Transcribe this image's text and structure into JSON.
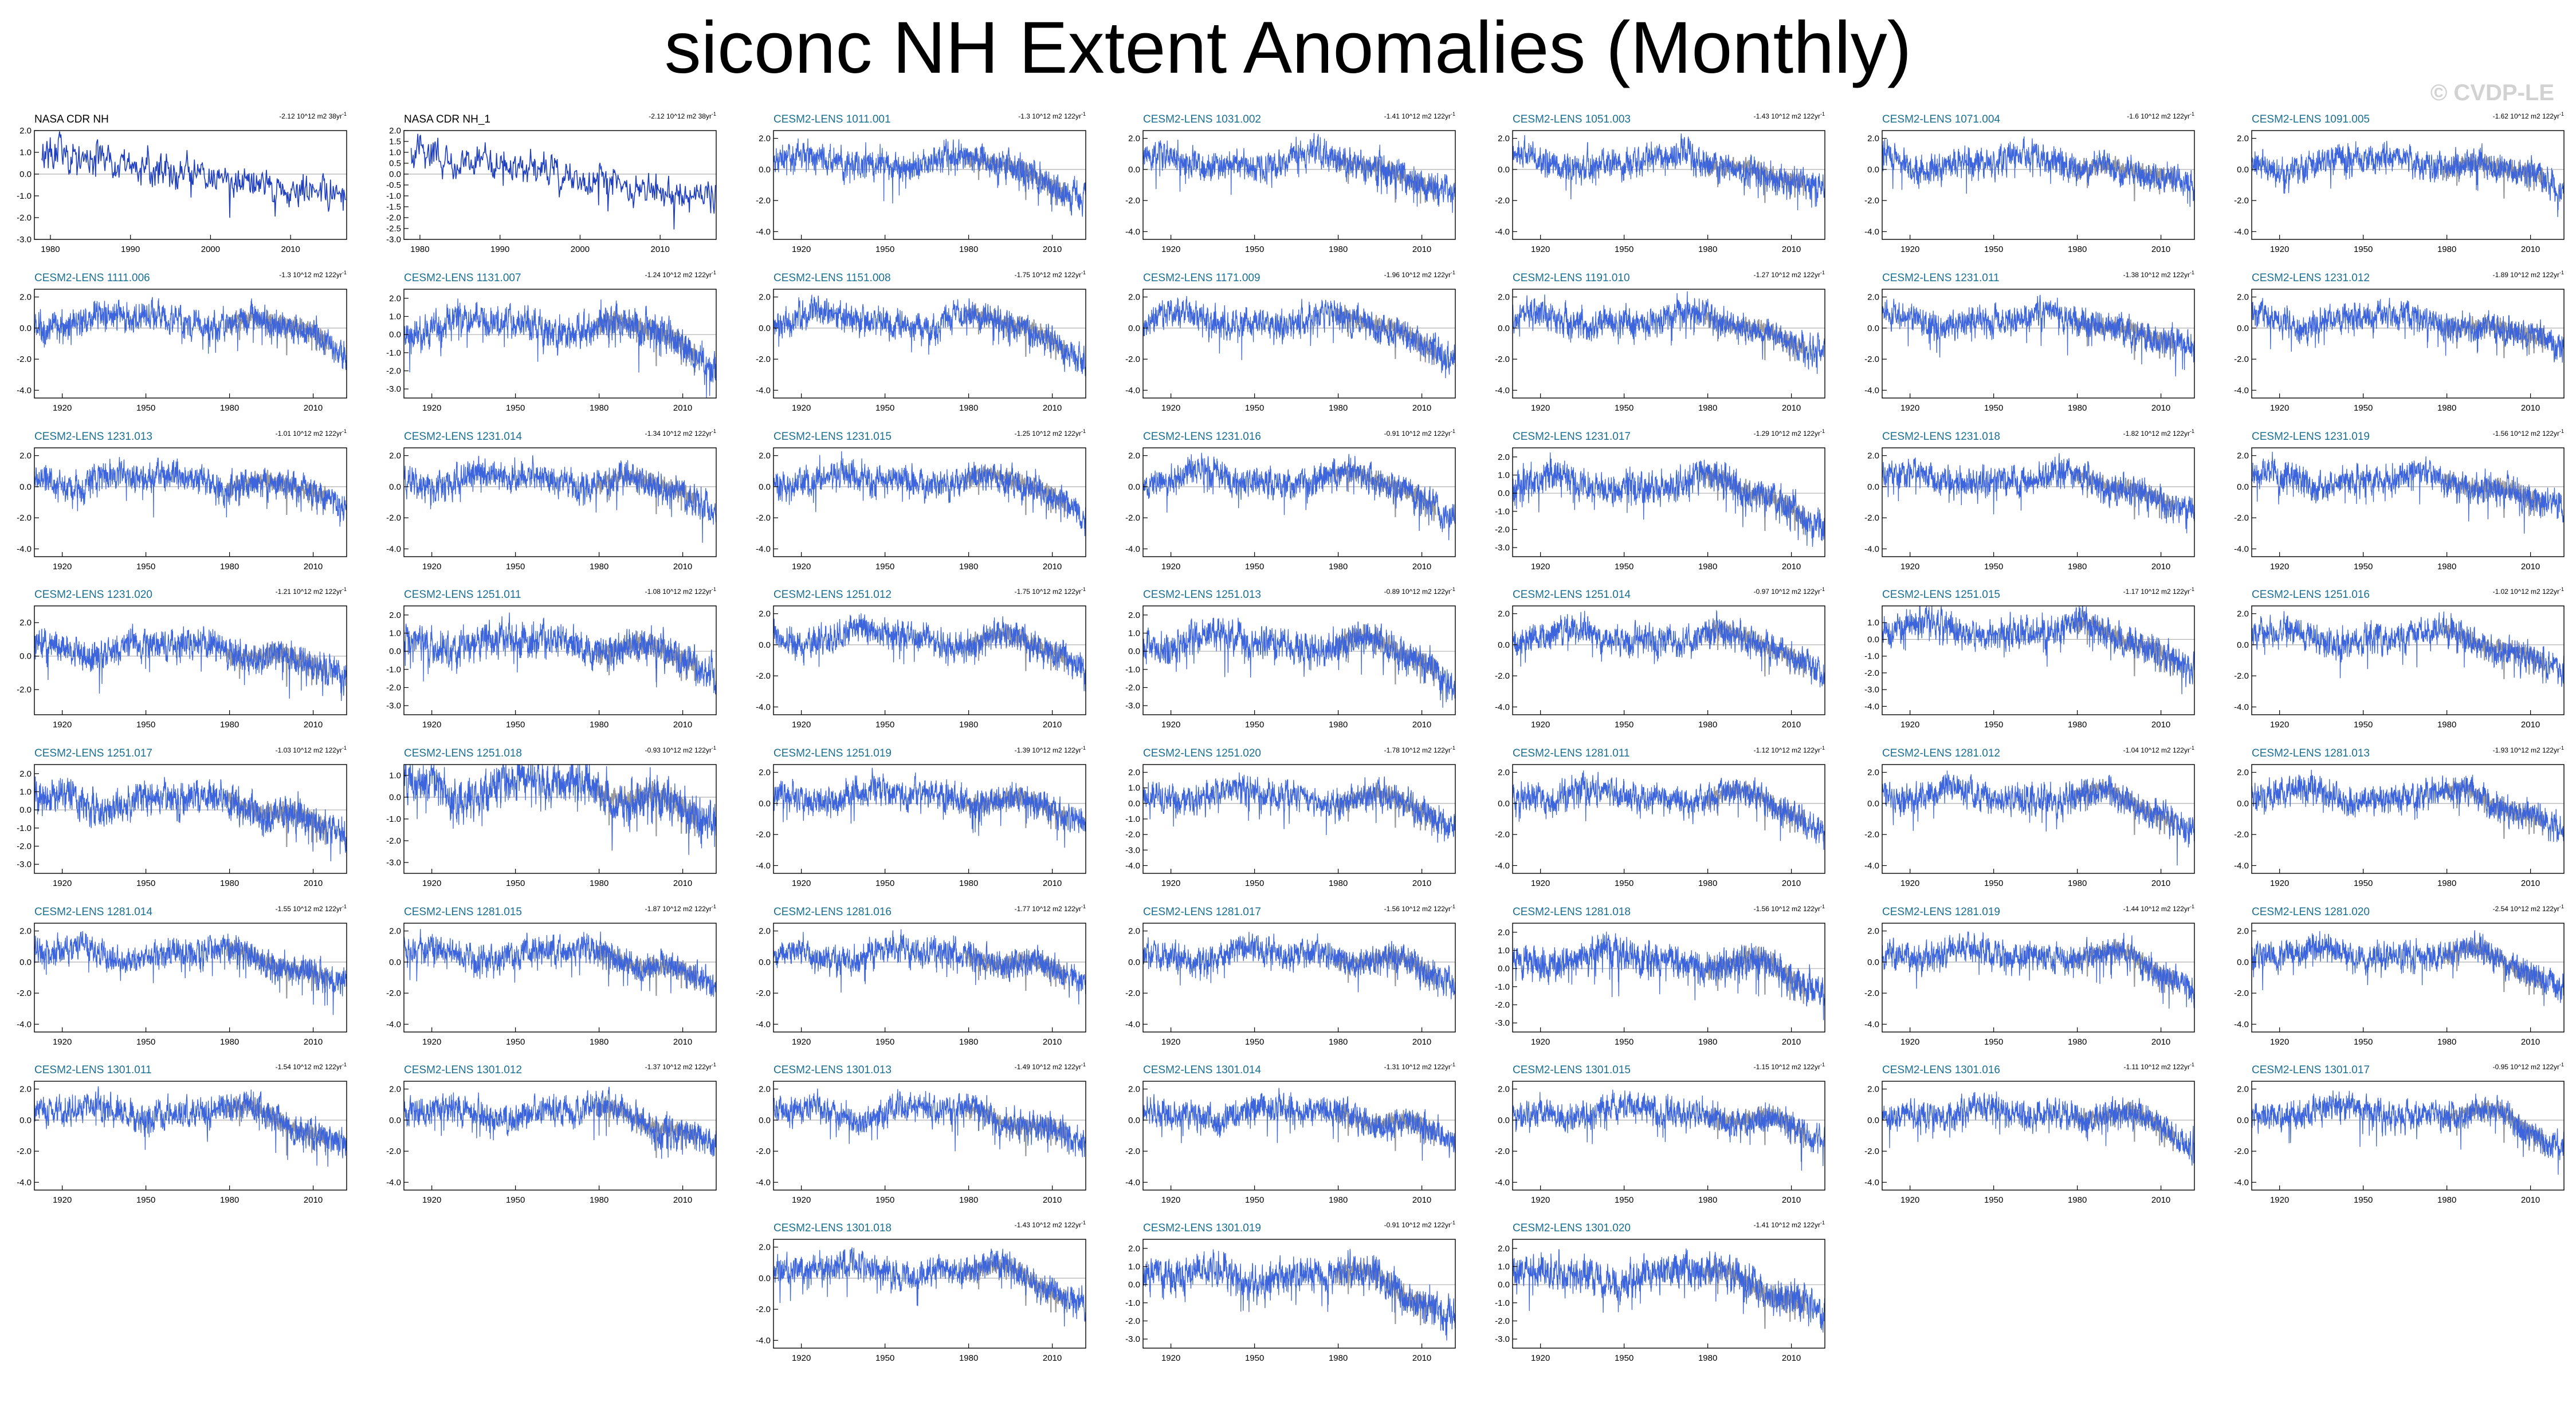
{
  "title": "siconc NH Extent Anomalies (Monthly)",
  "watermark": "© CVDP-LE",
  "colors": {
    "obs": "#1f3fbf",
    "model": "#3c64dc",
    "obs_overlay": "#9a9a9a",
    "zero_line": "#b0b0b0",
    "obs_title": "#000000",
    "model_title": "#1b6f93"
  },
  "chart_data": {
    "type": "line",
    "xlabel": "",
    "ylabel": "",
    "obs_xticks": [
      1980,
      1990,
      2000,
      2010
    ],
    "model_xticks": [
      1920,
      1950,
      1980,
      2010
    ],
    "panels": [
      {
        "title": "NASA CDR NH",
        "trend": "-2.12 10^12 m2 38yr",
        "kind": "obs",
        "yticks": [
          "2.0",
          "1.0",
          "0.0",
          "-1.0",
          "-2.0",
          "-3.0"
        ],
        "xlim": [
          1978,
          2017
        ],
        "ylim": [
          -3.0,
          2.0
        ]
      },
      {
        "title": "NASA CDR NH_1",
        "trend": "-2.12 10^12 m2 38yr",
        "kind": "obs",
        "yticks": [
          "2.0",
          "1.5",
          "1.0",
          "0.5",
          "0.0",
          "-0.5",
          "-1.0",
          "-1.5",
          "-2.0",
          "-2.5",
          "-3.0"
        ],
        "xlim": [
          1978,
          2017
        ],
        "ylim": [
          -3.0,
          2.0
        ]
      },
      {
        "title": "CESM2-LENS 1011.001",
        "trend": "-1.3 10^12 m2 122yr",
        "kind": "model",
        "yticks": [
          "2.0",
          "0.0",
          "-2.0",
          "-4.0"
        ],
        "ylim": [
          -4.5,
          2.5
        ]
      },
      {
        "title": "CESM2-LENS 1031.002",
        "trend": "-1.41 10^12 m2 122yr",
        "kind": "model",
        "yticks": [
          "2.0",
          "0.0",
          "-2.0",
          "-4.0"
        ],
        "ylim": [
          -4.5,
          2.5
        ]
      },
      {
        "title": "CESM2-LENS 1051.003",
        "trend": "-1.43 10^12 m2 122yr",
        "kind": "model",
        "yticks": [
          "2.0",
          "0.0",
          "-2.0",
          "-4.0"
        ],
        "ylim": [
          -4.5,
          2.5
        ]
      },
      {
        "title": "CESM2-LENS 1071.004",
        "trend": "-1.6 10^12 m2 122yr",
        "kind": "model",
        "yticks": [
          "2.0",
          "0.0",
          "-2.0",
          "-4.0"
        ],
        "ylim": [
          -4.5,
          2.5
        ]
      },
      {
        "title": "CESM2-LENS 1091.005",
        "trend": "-1.62 10^12 m2 122yr",
        "kind": "model",
        "yticks": [
          "2.0",
          "0.0",
          "-2.0",
          "-4.0"
        ],
        "ylim": [
          -4.5,
          2.5
        ]
      },
      {
        "title": "CESM2-LENS 1111.006",
        "trend": "-1.3 10^12 m2 122yr",
        "kind": "model",
        "yticks": [
          "2.0",
          "0.0",
          "-2.0",
          "-4.0"
        ],
        "ylim": [
          -4.5,
          2.5
        ]
      },
      {
        "title": "CESM2-LENS 1131.007",
        "trend": "-1.24 10^12 m2 122yr",
        "kind": "model",
        "yticks": [
          "2.0",
          "1.0",
          "0.0",
          "-1.0",
          "-2.0",
          "-3.0"
        ],
        "ylim": [
          -3.5,
          2.5
        ]
      },
      {
        "title": "CESM2-LENS 1151.008",
        "trend": "-1.75 10^12 m2 122yr",
        "kind": "model",
        "yticks": [
          "2.0",
          "0.0",
          "-2.0",
          "-4.0"
        ],
        "ylim": [
          -4.5,
          2.5
        ]
      },
      {
        "title": "CESM2-LENS 1171.009",
        "trend": "-1.96 10^12 m2 122yr",
        "kind": "model",
        "yticks": [
          "2.0",
          "0.0",
          "-2.0",
          "-4.0"
        ],
        "ylim": [
          -4.5,
          2.5
        ]
      },
      {
        "title": "CESM2-LENS 1191.010",
        "trend": "-1.27 10^12 m2 122yr",
        "kind": "model",
        "yticks": [
          "2.0",
          "0.0",
          "-2.0",
          "-4.0"
        ],
        "ylim": [
          -4.5,
          2.5
        ]
      },
      {
        "title": "CESM2-LENS 1231.011",
        "trend": "-1.38 10^12 m2 122yr",
        "kind": "model",
        "yticks": [
          "2.0",
          "0.0",
          "-2.0",
          "-4.0"
        ],
        "ylim": [
          -4.5,
          2.5
        ]
      },
      {
        "title": "CESM2-LENS 1231.012",
        "trend": "-1.89 10^12 m2 122yr",
        "kind": "model",
        "yticks": [
          "2.0",
          "0.0",
          "-2.0",
          "-4.0"
        ],
        "ylim": [
          -4.5,
          2.5
        ]
      },
      {
        "title": "CESM2-LENS 1231.013",
        "trend": "-1.01 10^12 m2 122yr",
        "kind": "model",
        "yticks": [
          "2.0",
          "0.0",
          "-2.0",
          "-4.0"
        ],
        "ylim": [
          -4.5,
          2.5
        ]
      },
      {
        "title": "CESM2-LENS 1231.014",
        "trend": "-1.34 10^12 m2 122yr",
        "kind": "model",
        "yticks": [
          "2.0",
          "0.0",
          "-2.0",
          "-4.0"
        ],
        "ylim": [
          -4.5,
          2.5
        ]
      },
      {
        "title": "CESM2-LENS 1231.015",
        "trend": "-1.25 10^12 m2 122yr",
        "kind": "model",
        "yticks": [
          "2.0",
          "0.0",
          "-2.0",
          "-4.0"
        ],
        "ylim": [
          -4.5,
          2.5
        ]
      },
      {
        "title": "CESM2-LENS 1231.016",
        "trend": "-0.91 10^12 m2 122yr",
        "kind": "model",
        "yticks": [
          "2.0",
          "0.0",
          "-2.0",
          "-4.0"
        ],
        "ylim": [
          -4.5,
          2.5
        ]
      },
      {
        "title": "CESM2-LENS 1231.017",
        "trend": "-1.29 10^12 m2 122yr",
        "kind": "model",
        "yticks": [
          "2.0",
          "1.0",
          "0.0",
          "-1.0",
          "-2.0",
          "-3.0"
        ],
        "ylim": [
          -3.5,
          2.5
        ]
      },
      {
        "title": "CESM2-LENS 1231.018",
        "trend": "-1.82 10^12 m2 122yr",
        "kind": "model",
        "yticks": [
          "2.0",
          "0.0",
          "-2.0",
          "-4.0"
        ],
        "ylim": [
          -4.5,
          2.5
        ]
      },
      {
        "title": "CESM2-LENS 1231.019",
        "trend": "-1.56 10^12 m2 122yr",
        "kind": "model",
        "yticks": [
          "2.0",
          "0.0",
          "-2.0",
          "-4.0"
        ],
        "ylim": [
          -4.5,
          2.5
        ]
      },
      {
        "title": "CESM2-LENS 1231.020",
        "trend": "-1.21 10^12 m2 122yr",
        "kind": "model",
        "yticks": [
          "2.0",
          "0.0",
          "-2.0"
        ],
        "ylim": [
          -3.5,
          3.0
        ]
      },
      {
        "title": "CESM2-LENS 1251.011",
        "trend": "-1.08 10^12 m2 122yr",
        "kind": "model",
        "yticks": [
          "2.0",
          "1.0",
          "0.0",
          "-1.0",
          "-2.0",
          "-3.0"
        ],
        "ylim": [
          -3.5,
          2.5
        ]
      },
      {
        "title": "CESM2-LENS 1251.012",
        "trend": "-1.75 10^12 m2 122yr",
        "kind": "model",
        "yticks": [
          "2.0",
          "0.0",
          "-2.0",
          "-4.0"
        ],
        "ylim": [
          -4.5,
          2.5
        ]
      },
      {
        "title": "CESM2-LENS 1251.013",
        "trend": "-0.89 10^12 m2 122yr",
        "kind": "model",
        "yticks": [
          "2.0",
          "1.0",
          "0.0",
          "-1.0",
          "-2.0",
          "-3.0"
        ],
        "ylim": [
          -3.5,
          2.5
        ]
      },
      {
        "title": "CESM2-LENS 1251.014",
        "trend": "-0.97 10^12 m2 122yr",
        "kind": "model",
        "yticks": [
          "2.0",
          "0.0",
          "-2.0",
          "-4.0"
        ],
        "ylim": [
          -4.5,
          2.5
        ]
      },
      {
        "title": "CESM2-LENS 1251.015",
        "trend": "-1.17 10^12 m2 122yr",
        "kind": "model",
        "yticks": [
          "1.0",
          "0.0",
          "-1.0",
          "-2.0",
          "-3.0",
          "-4.0"
        ],
        "ylim": [
          -4.5,
          2.0
        ]
      },
      {
        "title": "CESM2-LENS 1251.016",
        "trend": "-1.02 10^12 m2 122yr",
        "kind": "model",
        "yticks": [
          "2.0",
          "0.0",
          "-2.0",
          "-4.0"
        ],
        "ylim": [
          -4.5,
          2.5
        ]
      },
      {
        "title": "CESM2-LENS 1251.017",
        "trend": "-1.03 10^12 m2 122yr",
        "kind": "model",
        "yticks": [
          "2.0",
          "1.0",
          "0.0",
          "-1.0",
          "-2.0",
          "-3.0"
        ],
        "ylim": [
          -3.5,
          2.5
        ]
      },
      {
        "title": "CESM2-LENS 1251.018",
        "trend": "-0.93 10^12 m2 122yr",
        "kind": "model",
        "yticks": [
          "1.0",
          "0.0",
          "-1.0",
          "-2.0",
          "-3.0"
        ],
        "ylim": [
          -3.5,
          1.5
        ]
      },
      {
        "title": "CESM2-LENS 1251.019",
        "trend": "-1.39 10^12 m2 122yr",
        "kind": "model",
        "yticks": [
          "2.0",
          "0.0",
          "-2.0",
          "-4.0"
        ],
        "ylim": [
          -4.5,
          2.5
        ]
      },
      {
        "title": "CESM2-LENS 1251.020",
        "trend": "-1.78 10^12 m2 122yr",
        "kind": "model",
        "yticks": [
          "2.0",
          "1.0",
          "0.0",
          "-1.0",
          "-2.0",
          "-3.0",
          "-4.0"
        ],
        "ylim": [
          -4.5,
          2.5
        ]
      },
      {
        "title": "CESM2-LENS 1281.011",
        "trend": "-1.12 10^12 m2 122yr",
        "kind": "model",
        "yticks": [
          "2.0",
          "0.0",
          "-2.0",
          "-4.0"
        ],
        "ylim": [
          -4.5,
          2.5
        ]
      },
      {
        "title": "CESM2-LENS 1281.012",
        "trend": "-1.04 10^12 m2 122yr",
        "kind": "model",
        "yticks": [
          "2.0",
          "0.0",
          "-2.0",
          "-4.0"
        ],
        "ylim": [
          -4.5,
          2.5
        ]
      },
      {
        "title": "CESM2-LENS 1281.013",
        "trend": "-1.93 10^12 m2 122yr",
        "kind": "model",
        "yticks": [
          "2.0",
          "0.0",
          "-2.0",
          "-4.0"
        ],
        "ylim": [
          -4.5,
          2.5
        ]
      },
      {
        "title": "CESM2-LENS 1281.014",
        "trend": "-1.55 10^12 m2 122yr",
        "kind": "model",
        "yticks": [
          "2.0",
          "0.0",
          "-2.0",
          "-4.0"
        ],
        "ylim": [
          -4.5,
          2.5
        ]
      },
      {
        "title": "CESM2-LENS 1281.015",
        "trend": "-1.87 10^12 m2 122yr",
        "kind": "model",
        "yticks": [
          "2.0",
          "0.0",
          "-2.0",
          "-4.0"
        ],
        "ylim": [
          -4.5,
          2.5
        ]
      },
      {
        "title": "CESM2-LENS 1281.016",
        "trend": "-1.77 10^12 m2 122yr",
        "kind": "model",
        "yticks": [
          "2.0",
          "0.0",
          "-2.0",
          "-4.0"
        ],
        "ylim": [
          -4.5,
          2.5
        ]
      },
      {
        "title": "CESM2-LENS 1281.017",
        "trend": "-1.56 10^12 m2 122yr",
        "kind": "model",
        "yticks": [
          "2.0",
          "0.0",
          "-2.0",
          "-4.0"
        ],
        "ylim": [
          -4.5,
          2.5
        ]
      },
      {
        "title": "CESM2-LENS 1281.018",
        "trend": "-1.56 10^12 m2 122yr",
        "kind": "model",
        "yticks": [
          "2.0",
          "1.0",
          "0.0",
          "-1.0",
          "-2.0",
          "-3.0"
        ],
        "ylim": [
          -3.5,
          2.5
        ]
      },
      {
        "title": "CESM2-LENS 1281.019",
        "trend": "-1.44 10^12 m2 122yr",
        "kind": "model",
        "yticks": [
          "2.0",
          "0.0",
          "-2.0",
          "-4.0"
        ],
        "ylim": [
          -4.5,
          2.5
        ]
      },
      {
        "title": "CESM2-LENS 1281.020",
        "trend": "-2.54 10^12 m2 122yr",
        "kind": "model",
        "yticks": [
          "2.0",
          "0.0",
          "-2.0",
          "-4.0"
        ],
        "ylim": [
          -4.5,
          2.5
        ]
      },
      {
        "title": "CESM2-LENS 1301.011",
        "trend": "-1.54 10^12 m2 122yr",
        "kind": "model",
        "yticks": [
          "2.0",
          "0.0",
          "-2.0",
          "-4.0"
        ],
        "ylim": [
          -4.5,
          2.5
        ]
      },
      {
        "title": "CESM2-LENS 1301.012",
        "trend": "-1.37 10^12 m2 122yr",
        "kind": "model",
        "yticks": [
          "2.0",
          "0.0",
          "-2.0",
          "-4.0"
        ],
        "ylim": [
          -4.5,
          2.5
        ]
      },
      {
        "title": "CESM2-LENS 1301.013",
        "trend": "-1.49 10^12 m2 122yr",
        "kind": "model",
        "yticks": [
          "2.0",
          "0.0",
          "-2.0",
          "-4.0"
        ],
        "ylim": [
          -4.5,
          2.5
        ]
      },
      {
        "title": "CESM2-LENS 1301.014",
        "trend": "-1.31 10^12 m2 122yr",
        "kind": "model",
        "yticks": [
          "2.0",
          "0.0",
          "-2.0",
          "-4.0"
        ],
        "ylim": [
          -4.5,
          2.5
        ]
      },
      {
        "title": "CESM2-LENS 1301.015",
        "trend": "-1.15 10^12 m2 122yr",
        "kind": "model",
        "yticks": [
          "2.0",
          "0.0",
          "-2.0",
          "-4.0"
        ],
        "ylim": [
          -4.5,
          2.5
        ]
      },
      {
        "title": "CESM2-LENS 1301.016",
        "trend": "-1.11 10^12 m2 122yr",
        "kind": "model",
        "yticks": [
          "2.0",
          "0.0",
          "-2.0",
          "-4.0"
        ],
        "ylim": [
          -4.5,
          2.5
        ]
      },
      {
        "title": "CESM2-LENS 1301.017",
        "trend": "-0.95 10^12 m2 122yr",
        "kind": "model",
        "yticks": [
          "2.0",
          "0.0",
          "-2.0",
          "-4.0"
        ],
        "ylim": [
          -4.5,
          2.5
        ]
      },
      {
        "title": "CESM2-LENS 1301.018",
        "trend": "-1.43 10^12 m2 122yr",
        "kind": "model",
        "yticks": [
          "2.0",
          "0.0",
          "-2.0",
          "-4.0"
        ],
        "ylim": [
          -4.5,
          2.5
        ]
      },
      {
        "title": "CESM2-LENS 1301.019",
        "trend": "-0.91 10^12 m2 122yr",
        "kind": "model",
        "yticks": [
          "2.0",
          "1.0",
          "0.0",
          "-1.0",
          "-2.0",
          "-3.0"
        ],
        "ylim": [
          -3.5,
          2.5
        ]
      },
      {
        "title": "CESM2-LENS 1301.020",
        "trend": "-1.41 10^12 m2 122yr",
        "kind": "model",
        "yticks": [
          "2.0",
          "1.0",
          "0.0",
          "-1.0",
          "-2.0",
          "-3.0"
        ],
        "ylim": [
          -3.5,
          2.5
        ]
      }
    ]
  }
}
